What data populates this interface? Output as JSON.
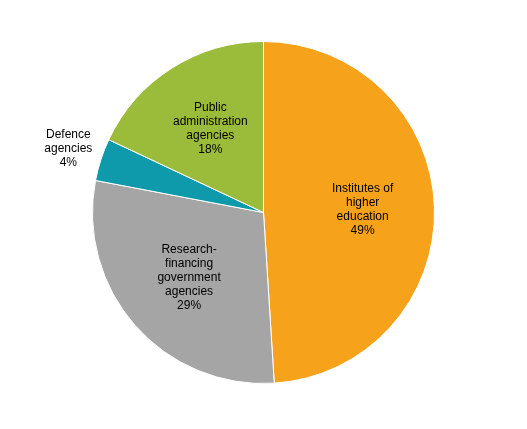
{
  "chart_data": {
    "type": "pie",
    "categories": [
      "Institutes of higher education",
      "Research-financing government agencies",
      "Defence agencies",
      "Public administration agencies"
    ],
    "values": [
      49,
      29,
      4,
      18
    ],
    "value_labels": [
      "49%",
      "29%",
      "4%",
      "18%"
    ],
    "colors": [
      "#f7a21b",
      "#a5a5a5",
      "#0e9aaa",
      "#9bbb3b"
    ],
    "data_labels": true
  }
}
